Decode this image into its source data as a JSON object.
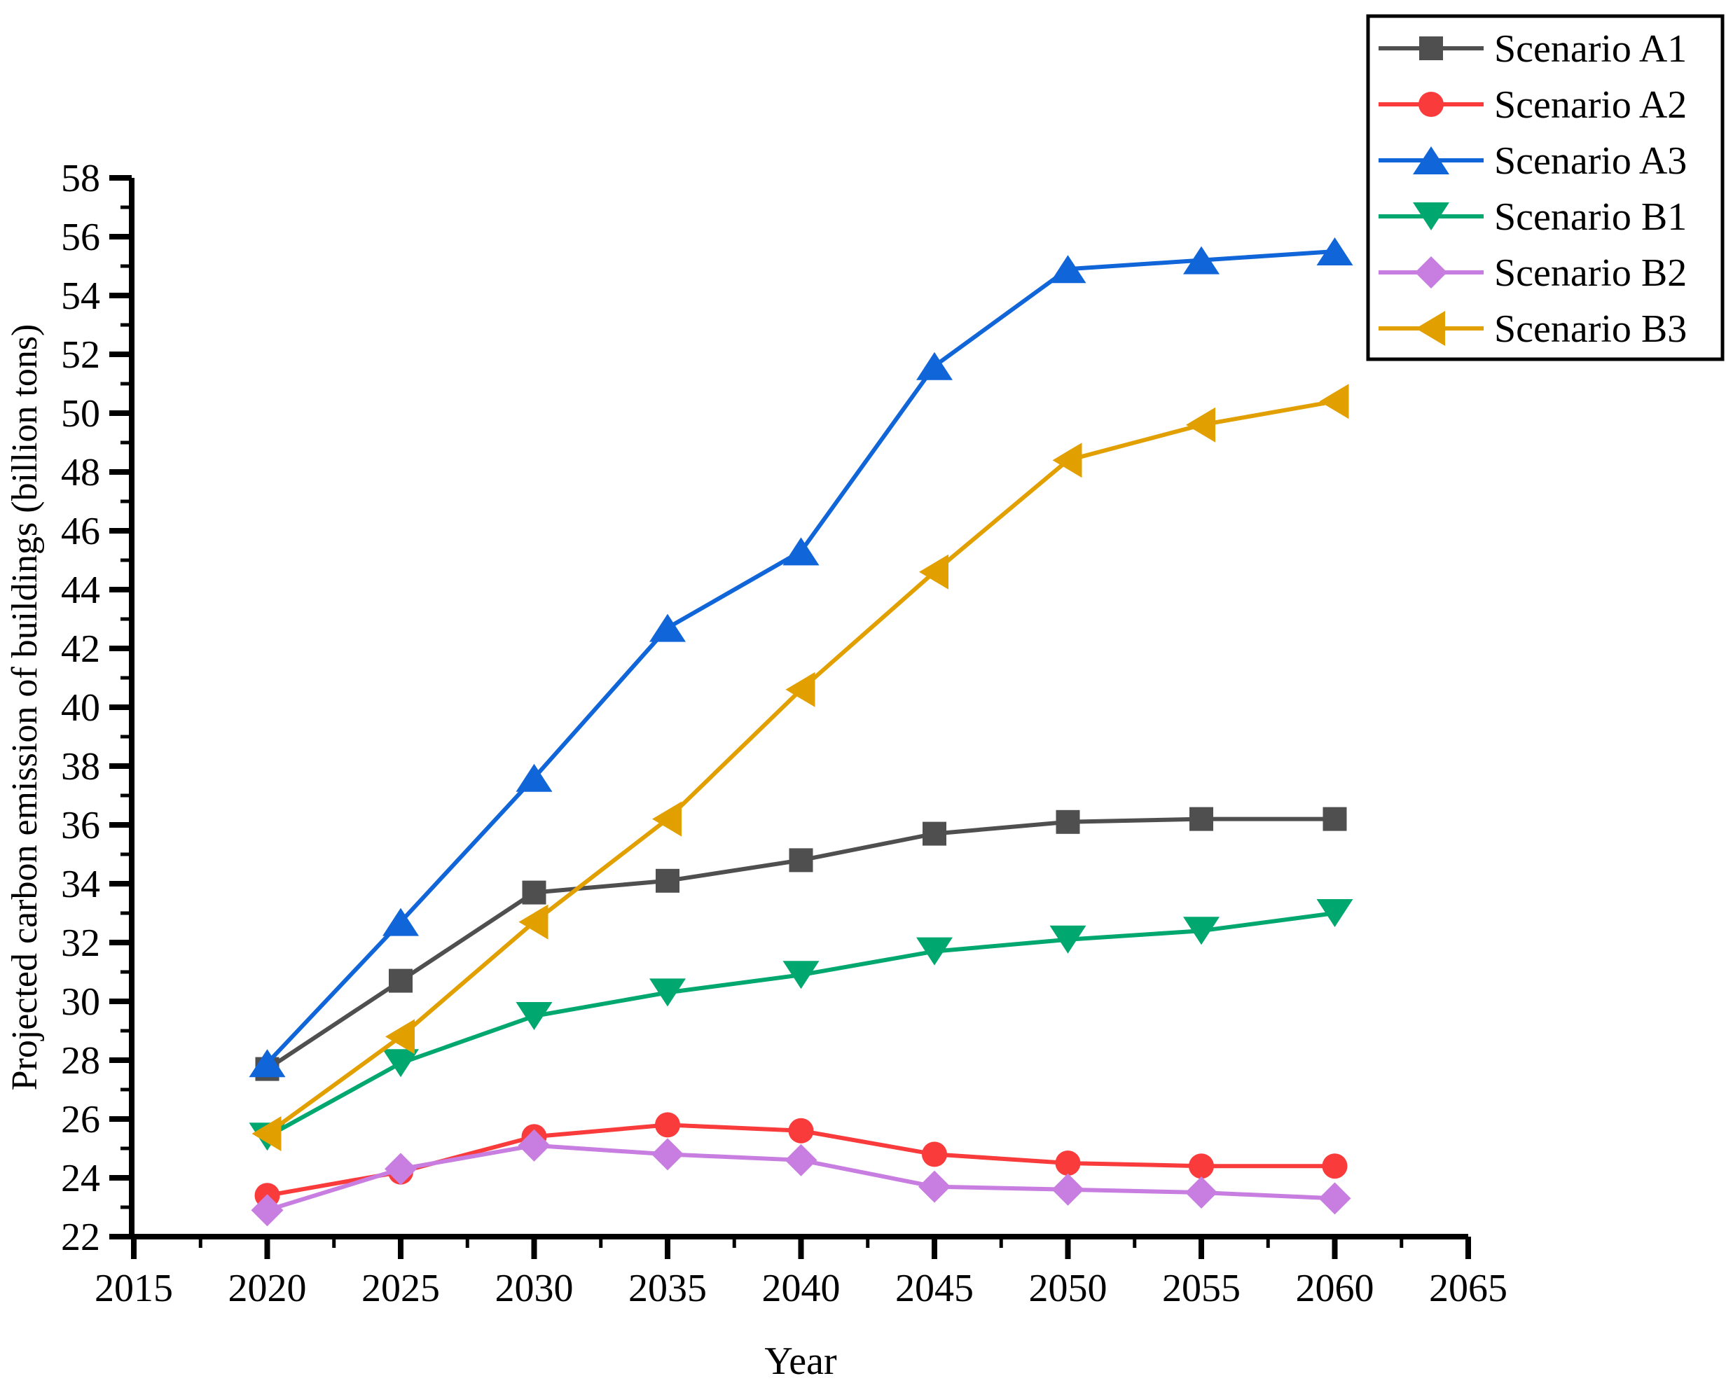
{
  "figure": {
    "xlabel": "Year",
    "ylabel": "Projected carbon emission of buildings (billion tons)"
  },
  "chart_data": {
    "type": "line",
    "title": "",
    "xlabel": "Year",
    "ylabel": "Projected carbon emission of buildings (billion tons)",
    "x": [
      2020,
      2025,
      2030,
      2035,
      2040,
      2045,
      2050,
      2055,
      2060
    ],
    "xlim": [
      2015,
      2065
    ],
    "ylim": [
      22,
      58
    ],
    "x_major_tick_step": 5,
    "x_minor_tick_step": 2.5,
    "y_major_tick_step": 2,
    "y_minor_tick_step": 1,
    "grid": false,
    "legend_position": "top-right",
    "axis_color": "#000000",
    "series": [
      {
        "name": "Scenario A1",
        "marker": "square",
        "color": "#4f4f4f",
        "values": [
          27.7,
          30.7,
          33.7,
          34.1,
          34.8,
          35.7,
          36.1,
          36.2,
          36.2
        ]
      },
      {
        "name": "Scenario A2",
        "marker": "circle",
        "color": "#f93b3b",
        "values": [
          23.4,
          24.2,
          25.4,
          25.8,
          25.6,
          24.8,
          24.5,
          24.4,
          24.4
        ]
      },
      {
        "name": "Scenario A3",
        "marker": "triangle-up",
        "color": "#1065d8",
        "values": [
          27.9,
          32.7,
          37.6,
          42.7,
          45.3,
          51.6,
          54.9,
          55.2,
          55.5
        ]
      },
      {
        "name": "Scenario B1",
        "marker": "triangle-down",
        "color": "#00a86f",
        "values": [
          25.4,
          27.9,
          29.5,
          30.3,
          30.9,
          31.7,
          32.1,
          32.4,
          33.0
        ]
      },
      {
        "name": "Scenario B2",
        "marker": "diamond",
        "color": "#c87ee1",
        "values": [
          22.9,
          24.3,
          25.1,
          24.8,
          24.6,
          23.7,
          23.6,
          23.5,
          23.3
        ]
      },
      {
        "name": "Scenario B3",
        "marker": "triangle-left",
        "color": "#e1a000",
        "values": [
          25.5,
          28.8,
          32.7,
          36.2,
          40.6,
          44.6,
          48.4,
          49.6,
          50.4
        ]
      }
    ]
  }
}
